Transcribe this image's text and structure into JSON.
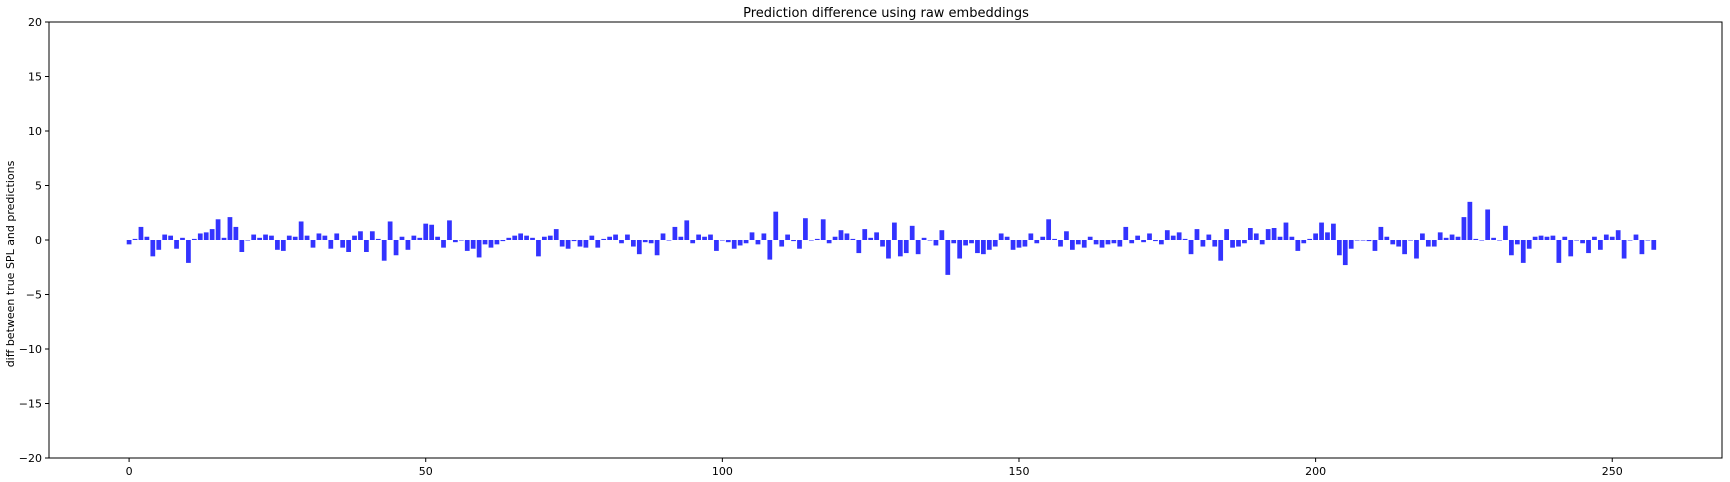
{
  "chart_data": {
    "type": "bar",
    "title": "Prediction difference using raw embeddings",
    "xlabel": "",
    "ylabel": "diff between true SPL and predictions",
    "xlim": [
      -13.5,
      268.5
    ],
    "ylim": [
      -20,
      20
    ],
    "xticks": [
      0,
      50,
      100,
      150,
      200,
      250
    ],
    "yticks": [
      -20,
      -15,
      -10,
      -5,
      0,
      5,
      10,
      15,
      20
    ],
    "bar_color": "#0000ff",
    "bar_opacity": 0.8,
    "grid": false,
    "legend": "none",
    "x_start": 0,
    "values": [
      -0.4,
      0.1,
      1.2,
      0.3,
      -1.5,
      -0.9,
      0.5,
      0.4,
      -0.8,
      0.2,
      -2.1,
      0.1,
      0.6,
      0.7,
      1.0,
      1.9,
      0.2,
      2.1,
      1.2,
      -1.1,
      0.0,
      0.5,
      0.2,
      0.5,
      0.4,
      -0.9,
      -1.0,
      0.4,
      0.3,
      1.7,
      0.4,
      -0.7,
      0.6,
      0.4,
      -0.8,
      0.6,
      -0.7,
      -1.1,
      0.4,
      0.8,
      -1.1,
      0.8,
      0.1,
      -1.9,
      1.7,
      -1.4,
      0.3,
      -0.9,
      0.4,
      0.2,
      1.5,
      1.4,
      0.3,
      -0.7,
      1.8,
      -0.2,
      0.0,
      -1.0,
      -0.8,
      -1.6,
      -0.4,
      -0.7,
      -0.4,
      -0.1,
      0.2,
      0.4,
      0.6,
      0.4,
      0.2,
      -1.5,
      0.3,
      0.4,
      1.0,
      -0.6,
      -0.8,
      -0.1,
      -0.6,
      -0.7,
      0.4,
      -0.7,
      0.1,
      0.3,
      0.5,
      -0.3,
      0.5,
      -0.6,
      -1.3,
      -0.2,
      -0.3,
      -1.4,
      0.6,
      0.0,
      1.2,
      0.3,
      1.8,
      -0.3,
      0.5,
      0.3,
      0.5,
      -1.0,
      0.0,
      -0.2,
      -0.8,
      -0.5,
      -0.3,
      0.7,
      -0.4,
      0.6,
      -1.8,
      2.6,
      -0.6,
      0.5,
      -0.1,
      -0.8,
      2.0,
      0.0,
      0.1,
      1.9,
      -0.3,
      0.3,
      0.9,
      0.6,
      0.1,
      -1.2,
      1.0,
      0.2,
      0.7,
      -0.6,
      -1.7,
      1.6,
      -1.5,
      -1.2,
      1.3,
      -1.3,
      0.2,
      0.0,
      -0.5,
      0.9,
      -3.2,
      -0.3,
      -1.7,
      -0.5,
      -0.3,
      -1.2,
      -1.3,
      -0.9,
      -0.6,
      0.6,
      0.3,
      -0.9,
      -0.7,
      -0.6,
      0.6,
      -0.3,
      0.3,
      1.9,
      0.1,
      -0.6,
      0.8,
      -0.9,
      -0.4,
      -0.7,
      0.3,
      -0.4,
      -0.7,
      -0.4,
      -0.3,
      -0.6,
      1.2,
      -0.3,
      0.4,
      -0.2,
      0.6,
      -0.1,
      -0.4,
      0.9,
      0.4,
      0.7,
      0.1,
      -1.3,
      1.0,
      -0.6,
      0.5,
      -0.6,
      -1.9,
      1.0,
      -0.7,
      -0.6,
      -0.3,
      1.1,
      0.6,
      -0.4,
      1.0,
      1.1,
      0.3,
      1.6,
      0.3,
      -1.0,
      -0.3,
      0.1,
      0.6,
      1.6,
      0.7,
      1.5,
      -1.4,
      -2.3,
      -0.8,
      0.0,
      0.0,
      -0.1,
      -1.0,
      1.2,
      0.3,
      -0.4,
      -0.6,
      -1.3,
      0.0,
      -1.7,
      0.6,
      -0.6,
      -0.6,
      0.7,
      0.2,
      0.5,
      0.3,
      2.1,
      3.5,
      0.1,
      0.0,
      2.8,
      0.2,
      0.0,
      1.3,
      -1.4,
      -0.4,
      -2.1,
      -0.8,
      0.3,
      0.4,
      0.3,
      0.4,
      -2.1,
      0.3,
      -1.5,
      0.0,
      -0.3,
      -1.2,
      0.3,
      -0.9,
      0.5,
      0.3,
      0.9,
      -1.7,
      0.0,
      0.5,
      -1.3,
      0.0,
      -0.9
    ]
  }
}
